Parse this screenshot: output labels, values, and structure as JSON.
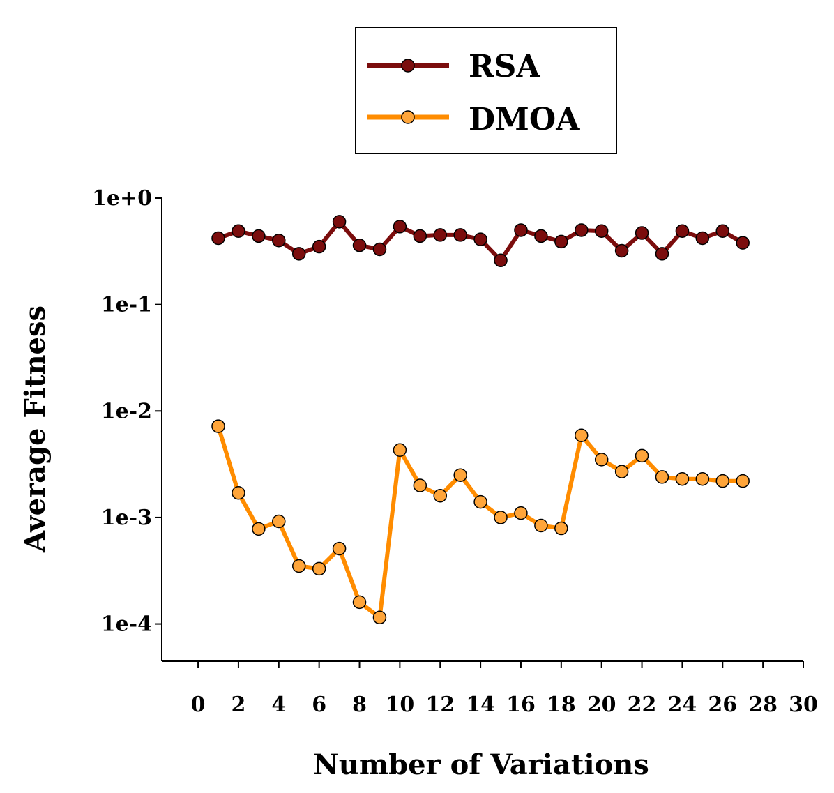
{
  "chart_data": {
    "type": "line",
    "title": "",
    "xlabel": "Number of Variations",
    "ylabel": "Average Fitness",
    "xlim": [
      -1.8,
      30
    ],
    "ylim_log10": [
      -4.35,
      0
    ],
    "yscale": "log",
    "x_ticks": [
      0,
      2,
      4,
      6,
      8,
      10,
      12,
      14,
      16,
      18,
      20,
      22,
      24,
      26,
      28,
      30
    ],
    "y_ticks": [
      {
        "label": "1e+0",
        "exp": 0
      },
      {
        "label": "1e-1",
        "exp": -1
      },
      {
        "label": "1e-2",
        "exp": -2
      },
      {
        "label": "1e-3",
        "exp": -3
      },
      {
        "label": "1e-4",
        "exp": -4
      }
    ],
    "legend_position": "top-center",
    "x": [
      1,
      2,
      3,
      4,
      5,
      6,
      7,
      8,
      9,
      10,
      11,
      12,
      13,
      14,
      15,
      16,
      17,
      18,
      19,
      20,
      21,
      22,
      23,
      24,
      25,
      26,
      27
    ],
    "series": [
      {
        "name": "RSA",
        "color": "#7b0d0d",
        "marker_fill": "#7b0d0d",
        "values": [
          0.42,
          0.49,
          0.44,
          0.4,
          0.3,
          0.35,
          0.6,
          0.36,
          0.33,
          0.54,
          0.44,
          0.45,
          0.45,
          0.41,
          0.26,
          0.5,
          0.44,
          0.39,
          0.5,
          0.49,
          0.32,
          0.47,
          0.3,
          0.49,
          0.42,
          0.49,
          0.38
        ]
      },
      {
        "name": "DMOA",
        "color": "#ff8c00",
        "marker_fill": "#ffa53a",
        "values": [
          0.0072,
          0.0017,
          0.00078,
          0.00092,
          0.00035,
          0.00033,
          0.00051,
          0.00016,
          0.000115,
          0.0043,
          0.002,
          0.0016,
          0.0025,
          0.0014,
          0.001,
          0.0011,
          0.00084,
          0.00079,
          0.0059,
          0.0035,
          0.0027,
          0.0038,
          0.0024,
          0.0023,
          0.0023,
          0.0022,
          0.0022
        ]
      }
    ]
  }
}
